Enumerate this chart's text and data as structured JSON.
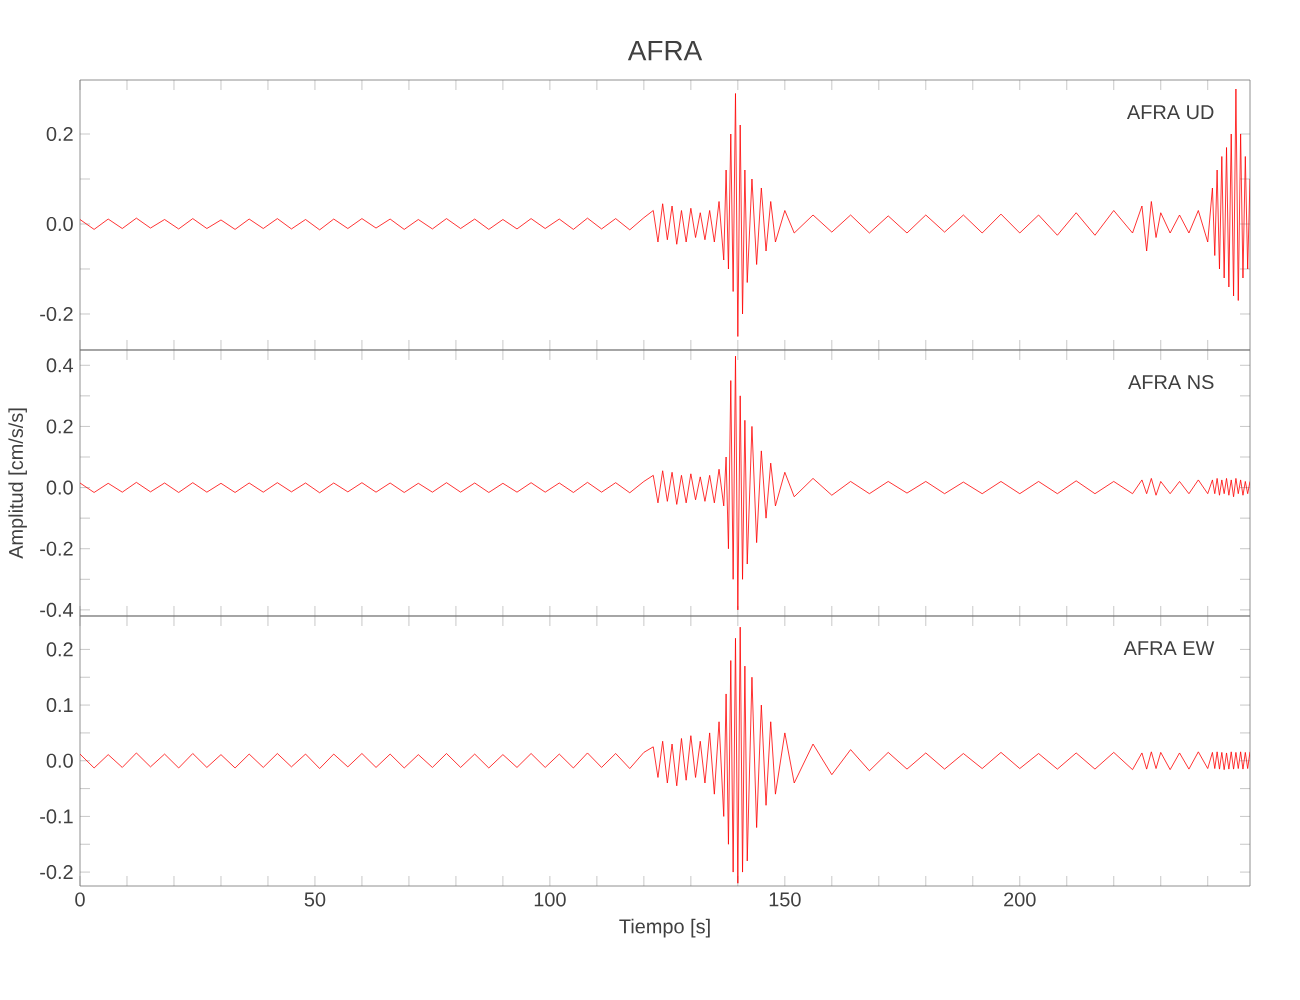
{
  "chart_data": [
    {
      "type": "line",
      "title": "AFRA",
      "annotations": [
        "AFRA   UD"
      ],
      "color": "#ff0000",
      "xlim": [
        0,
        249
      ],
      "ylim": [
        -0.28,
        0.32
      ],
      "tick_labels": "y",
      "xticks": [
        0,
        {
          "value": 10,
          "label": null
        },
        {
          "value": 20,
          "label": null
        },
        {
          "value": 30,
          "label": null
        },
        {
          "value": 40,
          "label": null
        },
        50,
        {
          "value": 60,
          "label": null
        },
        {
          "value": 70,
          "label": null
        },
        {
          "value": 80,
          "label": null
        },
        {
          "value": 90,
          "label": null
        },
        100,
        {
          "value": 110,
          "label": null
        },
        {
          "value": 120,
          "label": null
        },
        {
          "value": 130,
          "label": null
        },
        {
          "value": 140,
          "label": null
        },
        150,
        {
          "value": 160,
          "label": null
        },
        {
          "value": 170,
          "label": null
        },
        {
          "value": 180,
          "label": null
        },
        {
          "value": 190,
          "label": null
        },
        200,
        {
          "value": 210,
          "label": null
        },
        {
          "value": 220,
          "label": null
        },
        {
          "value": 230,
          "label": null
        },
        {
          "value": 240,
          "label": null
        }
      ],
      "yticks": [
        -0.2,
        {
          "value": -0.1,
          "label": null
        },
        {
          "value": 0,
          "label": "0.0"
        },
        {
          "value": 0.1,
          "label": null
        },
        0.2
      ],
      "x": [
        0,
        3,
        6,
        9,
        12,
        15,
        18,
        21,
        24,
        27,
        30,
        33,
        36,
        39,
        42,
        45,
        48,
        51,
        54,
        57,
        60,
        63,
        66,
        69,
        72,
        75,
        78,
        81,
        84,
        87,
        90,
        93,
        96,
        99,
        102,
        105,
        108,
        111,
        114,
        117,
        120,
        122,
        123,
        124,
        125,
        126,
        127,
        128,
        129,
        130,
        131,
        132,
        133,
        134,
        135,
        136,
        137,
        137.5,
        138,
        138.5,
        139,
        139.5,
        140,
        140.5,
        141,
        141.5,
        142,
        143,
        144,
        145,
        146,
        147,
        148,
        150,
        152,
        156,
        160,
        164,
        168,
        172,
        176,
        180,
        184,
        188,
        192,
        196,
        200,
        204,
        208,
        212,
        216,
        220,
        224,
        226,
        227,
        228,
        229,
        230,
        232,
        234,
        236,
        238,
        240,
        241,
        241.5,
        242,
        242.5,
        243,
        243.5,
        244,
        244.5,
        245,
        245.5,
        246,
        246.5,
        247,
        247.5,
        248,
        248.5,
        249
      ],
      "values": [
        0.01,
        -0.012,
        0.011,
        -0.01,
        0.013,
        -0.009,
        0.01,
        -0.011,
        0.012,
        -0.01,
        0.009,
        -0.012,
        0.011,
        -0.01,
        0.012,
        -0.011,
        0.01,
        -0.013,
        0.011,
        -0.01,
        0.012,
        -0.009,
        0.011,
        -0.012,
        0.01,
        -0.011,
        0.012,
        -0.01,
        0.011,
        -0.012,
        0.01,
        -0.011,
        0.012,
        -0.01,
        0.011,
        -0.012,
        0.013,
        -0.011,
        0.012,
        -0.013,
        0.014,
        0.03,
        -0.04,
        0.045,
        -0.035,
        0.04,
        -0.045,
        0.03,
        -0.04,
        0.035,
        -0.03,
        0.025,
        -0.035,
        0.03,
        -0.04,
        0.05,
        -0.08,
        0.12,
        -0.1,
        0.2,
        -0.15,
        0.29,
        -0.25,
        0.22,
        -0.2,
        0.12,
        -0.13,
        0.1,
        -0.09,
        0.08,
        -0.06,
        0.05,
        -0.04,
        0.03,
        -0.02,
        0.02,
        -0.018,
        0.02,
        -0.02,
        0.018,
        -0.02,
        0.02,
        -0.018,
        0.02,
        -0.02,
        0.022,
        -0.02,
        0.02,
        -0.025,
        0.025,
        -0.025,
        0.03,
        -0.02,
        0.04,
        -0.06,
        0.05,
        -0.03,
        0.025,
        -0.02,
        0.02,
        -0.02,
        0.03,
        -0.04,
        0.08,
        -0.07,
        0.12,
        -0.1,
        0.15,
        -0.12,
        0.17,
        -0.14,
        0.2,
        -0.16,
        0.3,
        -0.17,
        0.2,
        -0.12,
        0.15,
        -0.1,
        0.1
      ]
    },
    {
      "type": "line",
      "ylabel": "Amplitud [cm/s/s]",
      "annotations": [
        "AFRA   NS"
      ],
      "color": "#ff0000",
      "xlim": [
        0,
        249
      ],
      "ylim": [
        -0.42,
        0.45
      ],
      "tick_labels": "y",
      "xticks": [
        0,
        {
          "value": 10,
          "label": null
        },
        {
          "value": 20,
          "label": null
        },
        {
          "value": 30,
          "label": null
        },
        {
          "value": 40,
          "label": null
        },
        50,
        {
          "value": 60,
          "label": null
        },
        {
          "value": 70,
          "label": null
        },
        {
          "value": 80,
          "label": null
        },
        {
          "value": 90,
          "label": null
        },
        100,
        {
          "value": 110,
          "label": null
        },
        {
          "value": 120,
          "label": null
        },
        {
          "value": 130,
          "label": null
        },
        {
          "value": 140,
          "label": null
        },
        150,
        {
          "value": 160,
          "label": null
        },
        {
          "value": 170,
          "label": null
        },
        {
          "value": 180,
          "label": null
        },
        {
          "value": 190,
          "label": null
        },
        200,
        {
          "value": 210,
          "label": null
        },
        {
          "value": 220,
          "label": null
        },
        {
          "value": 230,
          "label": null
        },
        {
          "value": 240,
          "label": null
        }
      ],
      "yticks": [
        -0.4,
        {
          "value": -0.3,
          "label": null
        },
        -0.2,
        {
          "value": -0.1,
          "label": null
        },
        {
          "value": 0,
          "label": "0.0"
        },
        {
          "value": 0.1,
          "label": null
        },
        0.2,
        {
          "value": 0.3,
          "label": null
        },
        0.4
      ],
      "x": [
        0,
        3,
        6,
        9,
        12,
        15,
        18,
        21,
        24,
        27,
        30,
        33,
        36,
        39,
        42,
        45,
        48,
        51,
        54,
        57,
        60,
        63,
        66,
        69,
        72,
        75,
        78,
        81,
        84,
        87,
        90,
        93,
        96,
        99,
        102,
        105,
        108,
        111,
        114,
        117,
        120,
        122,
        123,
        124,
        125,
        126,
        127,
        128,
        129,
        130,
        131,
        132,
        133,
        134,
        135,
        136,
        137,
        137.5,
        138,
        138.5,
        139,
        139.5,
        140,
        140.5,
        141,
        141.5,
        142,
        143,
        144,
        145,
        146,
        147,
        148,
        150,
        152,
        156,
        160,
        164,
        168,
        172,
        176,
        180,
        184,
        188,
        192,
        196,
        200,
        204,
        208,
        212,
        216,
        220,
        224,
        226,
        227,
        228,
        229,
        230,
        232,
        234,
        236,
        238,
        240,
        241,
        241.5,
        242,
        242.5,
        243,
        243.5,
        244,
        244.5,
        245,
        245.5,
        246,
        246.5,
        247,
        247.5,
        248,
        248.5,
        249
      ],
      "values": [
        0.015,
        -0.016,
        0.014,
        -0.015,
        0.017,
        -0.014,
        0.015,
        -0.016,
        0.016,
        -0.015,
        0.014,
        -0.016,
        0.015,
        -0.015,
        0.016,
        -0.014,
        0.015,
        -0.017,
        0.015,
        -0.014,
        0.016,
        -0.015,
        0.015,
        -0.016,
        0.014,
        -0.015,
        0.016,
        -0.015,
        0.015,
        -0.016,
        0.014,
        -0.015,
        0.016,
        -0.015,
        0.015,
        -0.016,
        0.017,
        -0.015,
        0.016,
        -0.017,
        0.02,
        0.04,
        -0.05,
        0.055,
        -0.045,
        0.05,
        -0.055,
        0.04,
        -0.05,
        0.045,
        -0.04,
        0.035,
        -0.045,
        0.04,
        -0.05,
        0.06,
        -0.06,
        0.1,
        -0.2,
        0.35,
        -0.3,
        0.43,
        -0.4,
        0.3,
        -0.3,
        0.22,
        -0.25,
        0.2,
        -0.18,
        0.12,
        -0.1,
        0.08,
        -0.06,
        0.05,
        -0.03,
        0.03,
        -0.025,
        0.02,
        -0.02,
        0.02,
        -0.018,
        0.02,
        -0.02,
        0.018,
        -0.02,
        0.02,
        -0.02,
        0.02,
        -0.02,
        0.022,
        -0.02,
        0.02,
        -0.02,
        0.025,
        -0.02,
        0.03,
        -0.025,
        0.02,
        -0.02,
        0.02,
        -0.02,
        0.025,
        -0.02,
        0.025,
        -0.02,
        0.03,
        -0.025,
        0.025,
        -0.02,
        0.03,
        -0.025,
        0.025,
        -0.03,
        0.03,
        -0.02,
        0.025,
        -0.025,
        0.02,
        -0.02,
        0.02
      ]
    },
    {
      "type": "line",
      "xlabel": "Tiempo [s]",
      "annotations": [
        "AFRA   EW"
      ],
      "color": "#ff0000",
      "xlim": [
        0,
        249
      ],
      "ylim": [
        -0.225,
        0.26
      ],
      "xticks": [
        0,
        {
          "value": 10,
          "label": null
        },
        {
          "value": 20,
          "label": null
        },
        {
          "value": 30,
          "label": null
        },
        {
          "value": 40,
          "label": null
        },
        50,
        {
          "value": 60,
          "label": null
        },
        {
          "value": 70,
          "label": null
        },
        {
          "value": 80,
          "label": null
        },
        {
          "value": 90,
          "label": null
        },
        100,
        {
          "value": 110,
          "label": null
        },
        {
          "value": 120,
          "label": null
        },
        {
          "value": 130,
          "label": null
        },
        {
          "value": 140,
          "label": null
        },
        150,
        {
          "value": 160,
          "label": null
        },
        {
          "value": 170,
          "label": null
        },
        {
          "value": 180,
          "label": null
        },
        {
          "value": 190,
          "label": null
        },
        200,
        {
          "value": 210,
          "label": null
        },
        {
          "value": 220,
          "label": null
        },
        {
          "value": 230,
          "label": null
        },
        {
          "value": 240,
          "label": null
        }
      ],
      "yticks": [
        -0.2,
        {
          "value": -0.15,
          "label": null
        },
        -0.1,
        {
          "value": -0.05,
          "label": null
        },
        {
          "value": 0,
          "label": "0.0"
        },
        {
          "value": 0.05,
          "label": null
        },
        0.1,
        {
          "value": 0.15,
          "label": null
        },
        0.2
      ],
      "x": [
        0,
        3,
        6,
        9,
        12,
        15,
        18,
        21,
        24,
        27,
        30,
        33,
        36,
        39,
        42,
        45,
        48,
        51,
        54,
        57,
        60,
        63,
        66,
        69,
        72,
        75,
        78,
        81,
        84,
        87,
        90,
        93,
        96,
        99,
        102,
        105,
        108,
        111,
        114,
        117,
        120,
        122,
        123,
        124,
        125,
        126,
        127,
        128,
        129,
        130,
        131,
        132,
        133,
        134,
        135,
        136,
        137,
        137.5,
        138,
        138.5,
        139,
        139.5,
        140,
        140.5,
        141,
        141.5,
        142,
        143,
        144,
        145,
        146,
        147,
        148,
        150,
        152,
        156,
        160,
        164,
        168,
        172,
        176,
        180,
        184,
        188,
        192,
        196,
        200,
        204,
        208,
        212,
        216,
        220,
        224,
        226,
        227,
        228,
        229,
        230,
        232,
        234,
        236,
        238,
        240,
        241,
        241.5,
        242,
        242.5,
        243,
        243.5,
        244,
        244.5,
        245,
        245.5,
        246,
        246.5,
        247,
        247.5,
        248,
        248.5,
        249
      ],
      "values": [
        0.012,
        -0.013,
        0.011,
        -0.012,
        0.014,
        -0.011,
        0.012,
        -0.013,
        0.013,
        -0.012,
        0.011,
        -0.013,
        0.012,
        -0.012,
        0.013,
        -0.011,
        0.012,
        -0.014,
        0.012,
        -0.011,
        0.013,
        -0.012,
        0.012,
        -0.013,
        0.011,
        -0.012,
        0.013,
        -0.012,
        0.012,
        -0.013,
        0.011,
        -0.012,
        0.013,
        -0.012,
        0.012,
        -0.013,
        0.014,
        -0.012,
        0.013,
        -0.014,
        0.015,
        0.025,
        -0.03,
        0.035,
        -0.04,
        0.03,
        -0.045,
        0.04,
        -0.035,
        0.045,
        -0.03,
        0.035,
        -0.04,
        0.05,
        -0.06,
        0.07,
        -0.1,
        0.12,
        -0.15,
        0.18,
        -0.2,
        0.22,
        -0.22,
        0.24,
        -0.2,
        0.17,
        -0.18,
        0.15,
        -0.12,
        0.1,
        -0.08,
        0.07,
        -0.06,
        0.05,
        -0.04,
        0.03,
        -0.025,
        0.02,
        -0.018,
        0.015,
        -0.015,
        0.014,
        -0.015,
        0.013,
        -0.014,
        0.015,
        -0.014,
        0.013,
        -0.015,
        0.014,
        -0.015,
        0.015,
        -0.016,
        0.014,
        -0.015,
        0.016,
        -0.014,
        0.015,
        -0.016,
        0.014,
        -0.015,
        0.016,
        -0.014,
        0.015,
        -0.014,
        0.016,
        -0.015,
        0.015,
        -0.016,
        0.014,
        -0.015,
        0.016,
        -0.015,
        0.015,
        -0.014,
        0.016,
        -0.015,
        0.015,
        -0.014,
        0.016
      ]
    }
  ]
}
